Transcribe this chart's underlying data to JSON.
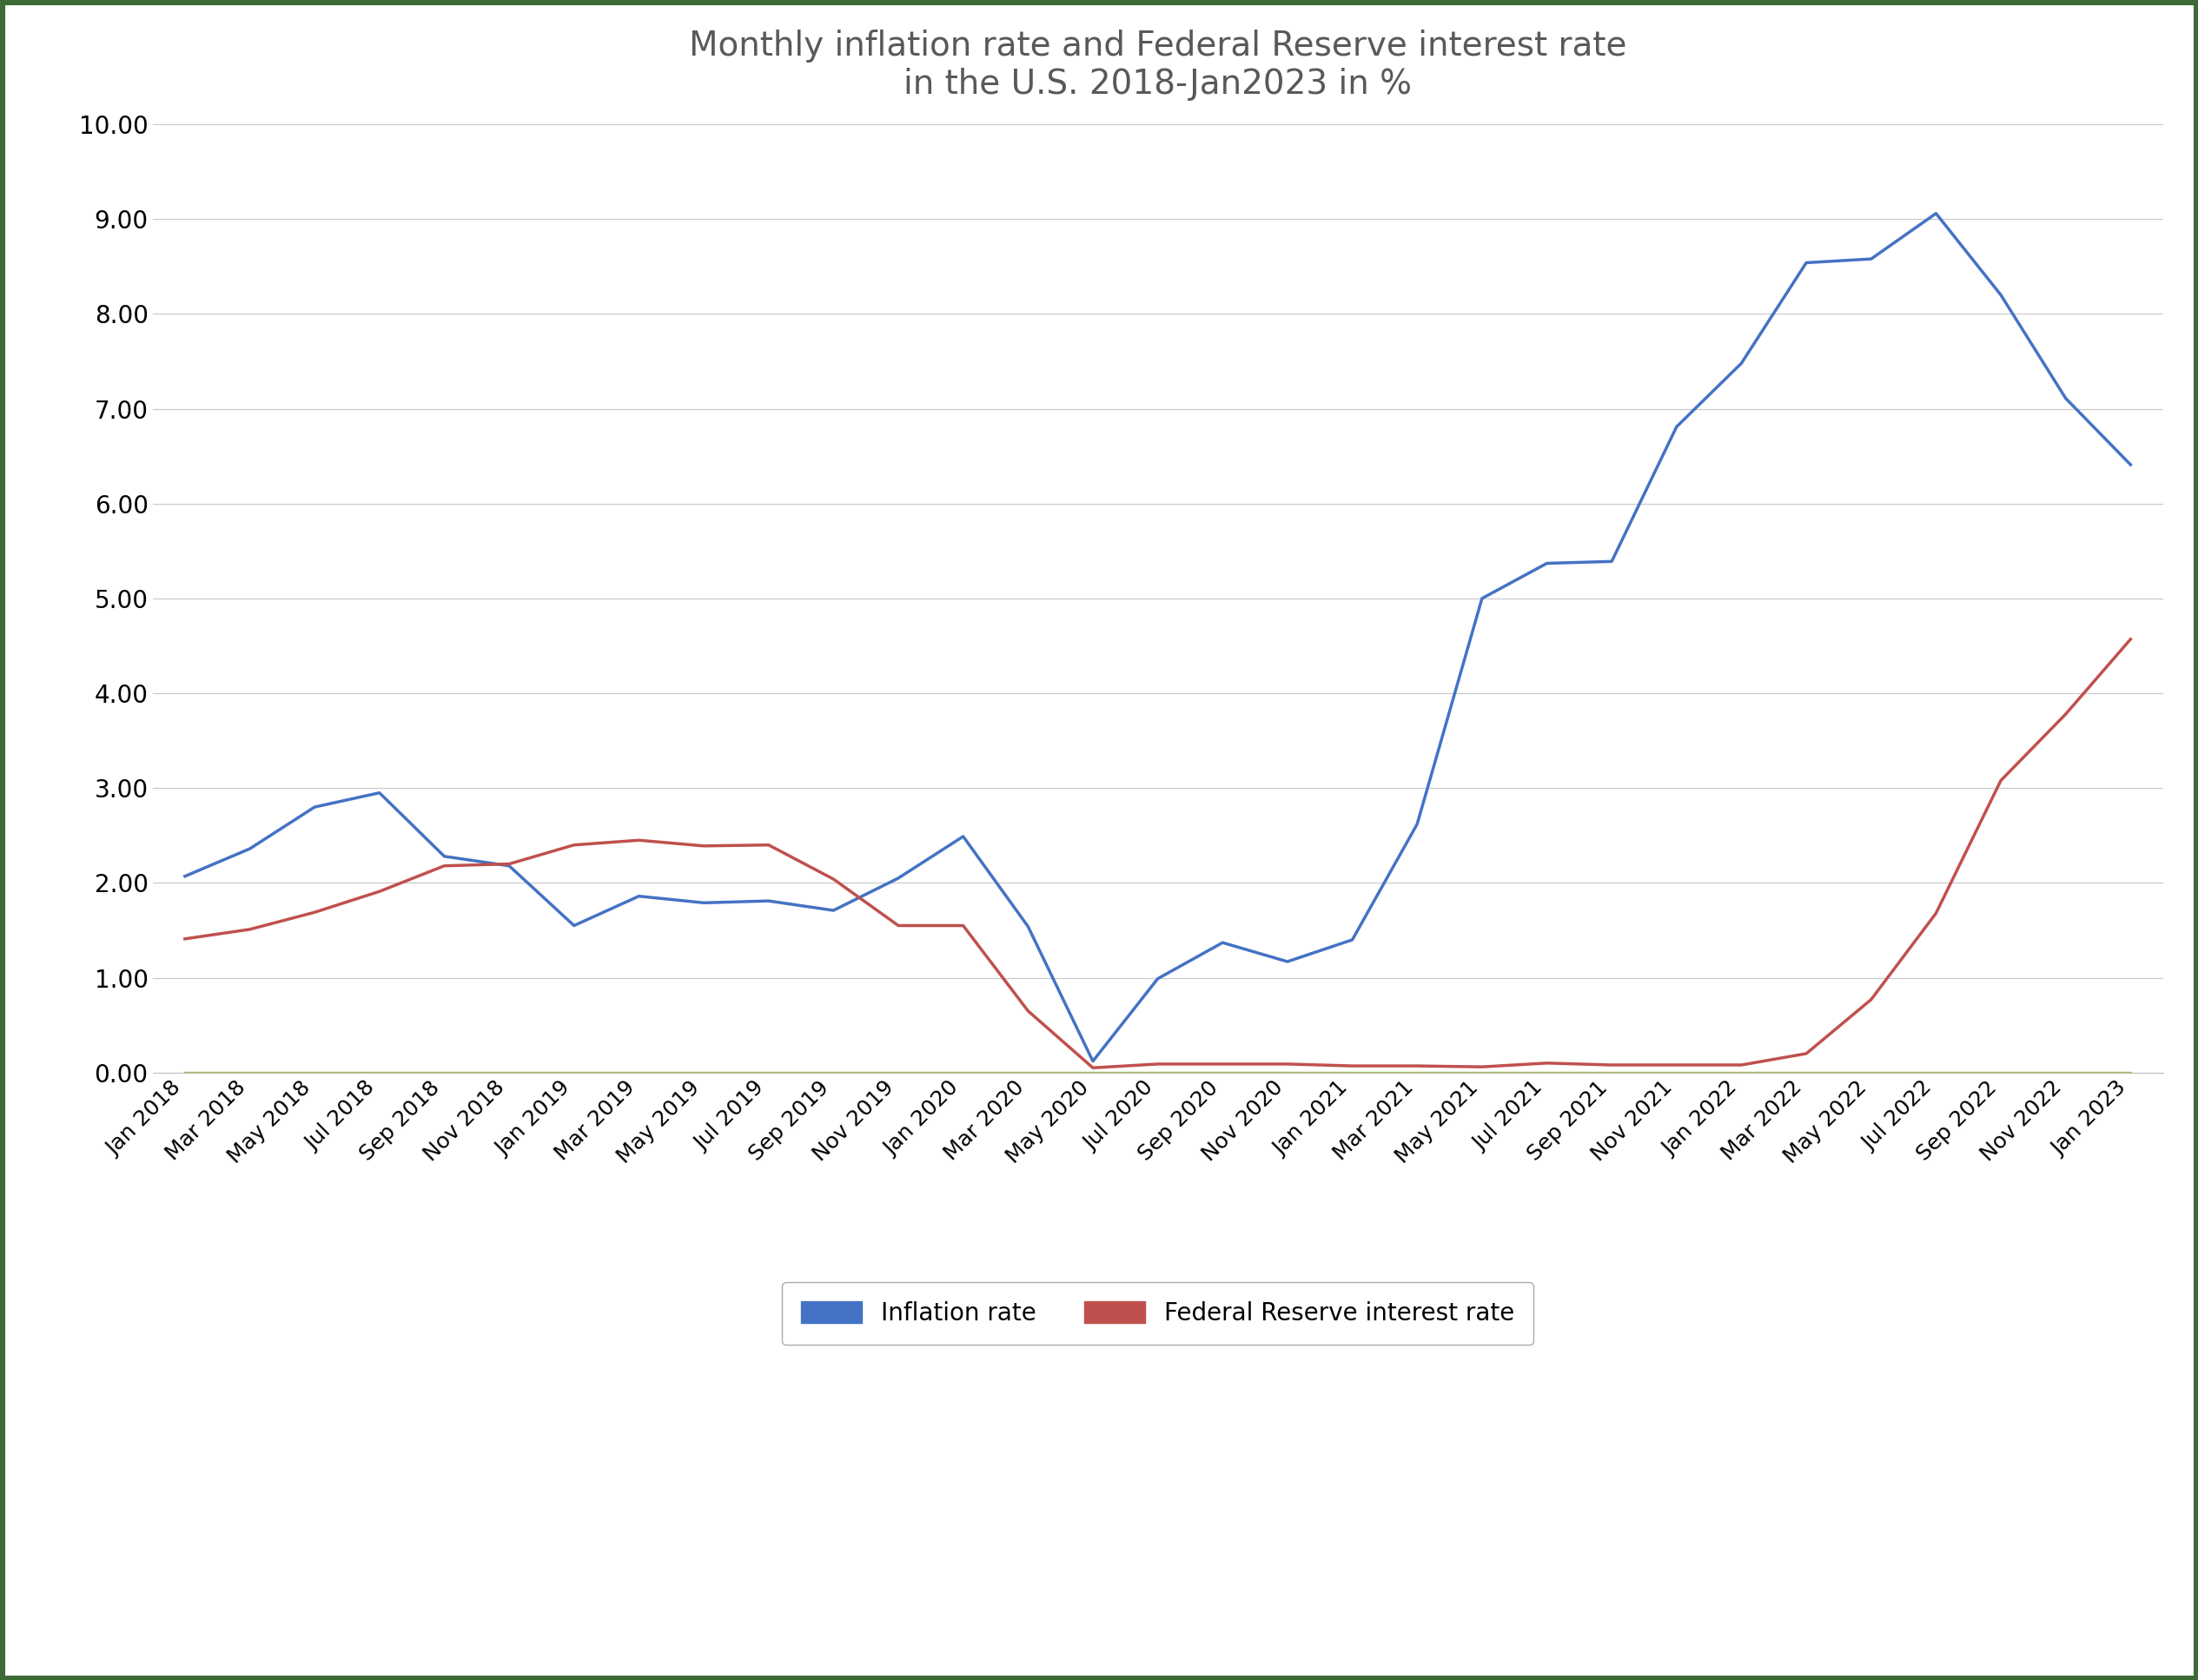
{
  "title_line1": "Monthly inflation rate and Federal Reserve interest rate",
  "title_line2": "in the U.S. 2018-Jan2023 in %",
  "title_fontsize": 28,
  "inflation_values": [
    2.07,
    2.36,
    2.8,
    2.95,
    2.28,
    2.18,
    1.55,
    1.86,
    1.79,
    1.81,
    1.71,
    2.05,
    2.49,
    1.54,
    0.12,
    0.99,
    1.37,
    1.17,
    1.4,
    2.62,
    5.0,
    5.37,
    5.39,
    6.81,
    7.48,
    8.54,
    8.58,
    9.06,
    8.2,
    7.11,
    6.41
  ],
  "fed_values": [
    1.41,
    1.51,
    1.69,
    1.91,
    2.18,
    2.2,
    2.4,
    2.45,
    2.39,
    2.4,
    2.04,
    1.55,
    1.55,
    0.65,
    0.05,
    0.09,
    0.09,
    0.09,
    0.07,
    0.07,
    0.06,
    0.1,
    0.08,
    0.08,
    0.08,
    0.2,
    0.77,
    1.68,
    3.08,
    3.78,
    4.57
  ],
  "green_values": [
    0.0,
    0.0,
    0.0,
    0.0,
    0.0,
    0.0,
    0.0,
    0.0,
    0.0,
    0.0,
    0.0,
    0.0,
    0.0,
    0.0,
    0.0,
    0.0,
    0.0,
    0.0,
    0.0,
    0.0,
    0.0,
    0.0,
    0.0,
    0.0,
    0.0,
    0.0,
    0.0,
    0.0,
    0.0,
    0.0,
    0.0
  ],
  "inflation_color": "#4472C4",
  "fed_color": "#C0504D",
  "green_color": "#9BBB59",
  "inflation_label": "Inflation rate",
  "fed_label": "Federal Reserve interest rate",
  "ylim": [
    0.0,
    10.0
  ],
  "yticks": [
    0.0,
    1.0,
    2.0,
    3.0,
    4.0,
    5.0,
    6.0,
    7.0,
    8.0,
    9.0,
    10.0
  ],
  "yticklabels": [
    "0.00",
    "1.00",
    "2.00",
    "3.00",
    "4.00",
    "5.00",
    "6.00",
    "7.00",
    "8.00",
    "9.00",
    "10.00"
  ],
  "xtick_labels": [
    "Jan 2018",
    "Mar 2018",
    "May 2018",
    "Jul 2018",
    "Sep 2018",
    "Nov 2018",
    "Jan 2019",
    "Mar 2019",
    "May 2019",
    "Jul 2019",
    "Sep 2019",
    "Nov 2019",
    "Jan 2020",
    "Mar 2020",
    "May 2020",
    "Jul 2020",
    "Sep 2020",
    "Nov 2020",
    "Jan 2021",
    "Mar 2021",
    "May 2021",
    "Jul 2021",
    "Sep 2021",
    "Nov 2021",
    "Jan 2022",
    "Mar 2022",
    "May 2022",
    "Jul 2022",
    "Sep 2022",
    "Nov 2022",
    "Jan 2023"
  ],
  "background_color": "#ffffff",
  "border_color": "#3D6B35",
  "grid_color": "#c8c8c8",
  "ytick_fontsize": 20,
  "xtick_fontsize": 18,
  "legend_fontsize": 20,
  "line_width": 2.5
}
